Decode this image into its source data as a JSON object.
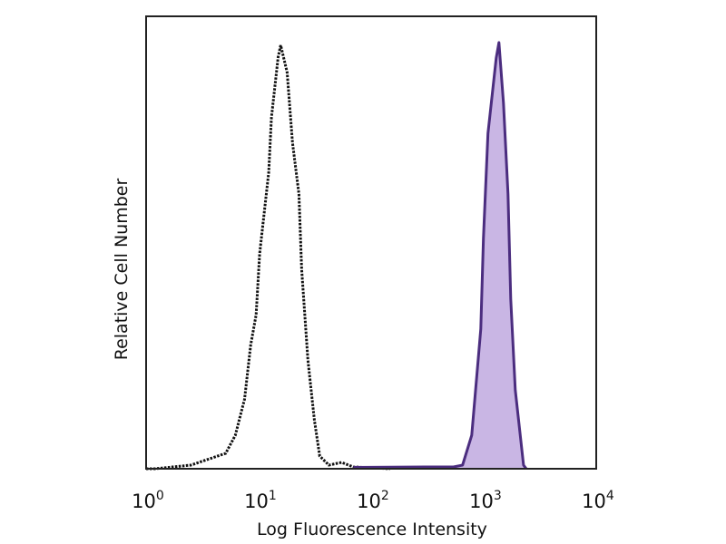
{
  "chart_data": {
    "type": "area",
    "title": "",
    "xlabel": "Log Fluorescence Intensity",
    "ylabel": "Relative Cell Number",
    "x_scale": "log",
    "xlim": [
      1,
      10000
    ],
    "ylim": [
      0,
      100
    ],
    "grid": false,
    "legend": "none",
    "x_ticks": [
      {
        "base": "10",
        "exp": "0",
        "value": 1
      },
      {
        "base": "10",
        "exp": "1",
        "value": 10
      },
      {
        "base": "10",
        "exp": "2",
        "value": 100
      },
      {
        "base": "10",
        "exp": "3",
        "value": 1000
      },
      {
        "base": "10",
        "exp": "4",
        "value": 10000
      }
    ],
    "series": [
      {
        "style": "dotted-outline",
        "color": "#111111",
        "points": [
          [
            1,
            0
          ],
          [
            1.2,
            0
          ],
          [
            2.5,
            0.8
          ],
          [
            5.1,
            3.4
          ],
          [
            6.2,
            7.4
          ],
          [
            7.5,
            15.4
          ],
          [
            8.5,
            27.3
          ],
          [
            9.5,
            34.0
          ],
          [
            10.2,
            47.5
          ],
          [
            12.3,
            65.5
          ],
          [
            13.0,
            77.6
          ],
          [
            14.9,
            91.0
          ],
          [
            15.7,
            93.6
          ],
          [
            17.9,
            87.6
          ],
          [
            20.0,
            72.1
          ],
          [
            22.8,
            60.7
          ],
          [
            24.1,
            44.1
          ],
          [
            27.4,
            24.0
          ],
          [
            31.3,
            10.8
          ],
          [
            34.9,
            2.8
          ],
          [
            42.1,
            0.8
          ],
          [
            54.6,
            1.4
          ],
          [
            69.5,
            0.4
          ],
          [
            147,
            0
          ]
        ]
      },
      {
        "style": "filled",
        "color": "#4b2d7f",
        "fill": "#c9b6e4",
        "points": [
          [
            69.5,
            0.3
          ],
          [
            300,
            0.4
          ],
          [
            539,
            0.4
          ],
          [
            649,
            0.8
          ],
          [
            782,
            7.4
          ],
          [
            942,
            30.9
          ],
          [
            995,
            50.9
          ],
          [
            1092,
            74.1
          ],
          [
            1291,
            90.8
          ],
          [
            1365,
            94.2
          ],
          [
            1500,
            80.8
          ],
          [
            1644,
            60.7
          ],
          [
            1738,
            37.5
          ],
          [
            1909,
            17.4
          ],
          [
            2259,
            0.8
          ],
          [
            2388,
            0
          ]
        ]
      }
    ]
  }
}
